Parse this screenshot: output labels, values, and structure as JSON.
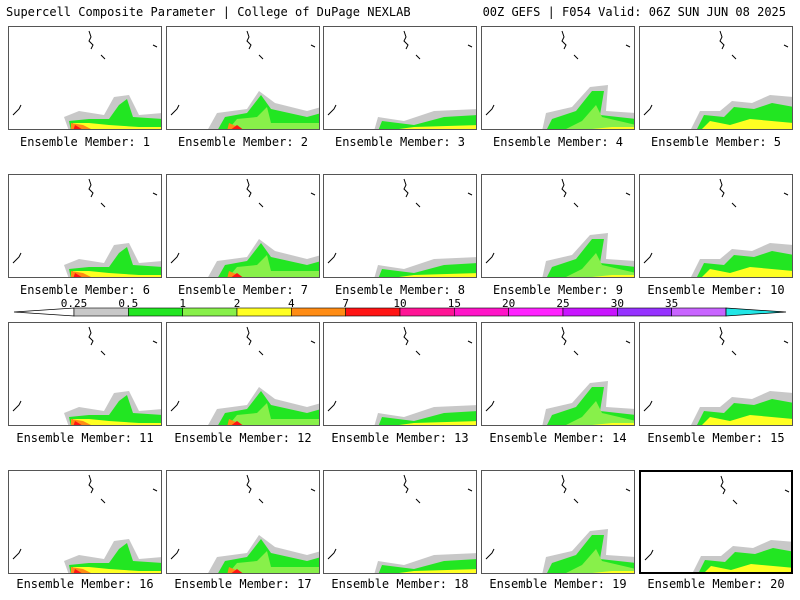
{
  "header": {
    "title": "Supercell Composite Parameter | College of DuPage NEXLAB",
    "run_info": "00Z GEFS | F054 Valid: 06Z SUN JUN 08 2025"
  },
  "members": [
    {
      "label": "Ensemble Member: 1"
    },
    {
      "label": "Ensemble Member: 2"
    },
    {
      "label": "Ensemble Member: 3"
    },
    {
      "label": "Ensemble Member: 4"
    },
    {
      "label": "Ensemble Member: 5"
    },
    {
      "label": "Ensemble Member: 6"
    },
    {
      "label": "Ensemble Member: 7"
    },
    {
      "label": "Ensemble Member: 8"
    },
    {
      "label": "Ensemble Member: 9"
    },
    {
      "label": "Ensemble Member: 10"
    },
    {
      "label": "Ensemble Member: 11"
    },
    {
      "label": "Ensemble Member: 12"
    },
    {
      "label": "Ensemble Member: 13"
    },
    {
      "label": "Ensemble Member: 14"
    },
    {
      "label": "Ensemble Member: 15"
    },
    {
      "label": "Ensemble Member: 16"
    },
    {
      "label": "Ensemble Member: 17"
    },
    {
      "label": "Ensemble Member: 18"
    },
    {
      "label": "Ensemble Member: 19"
    },
    {
      "label": "Ensemble Member: 20"
    }
  ],
  "selected_member": 20,
  "colorbar": {
    "ticks": [
      "0.25",
      "0.5",
      "1",
      "2",
      "4",
      "7",
      "10",
      "15",
      "20",
      "25",
      "30",
      "35"
    ],
    "colors": [
      "#c8c8c8",
      "#22e622",
      "#88f04a",
      "#ffff22",
      "#ff8c14",
      "#ff1414",
      "#ff1496",
      "#ff14c8",
      "#ff22ff",
      "#c814ff",
      "#9632ff",
      "#c864ff",
      "#22e6e6"
    ]
  }
}
